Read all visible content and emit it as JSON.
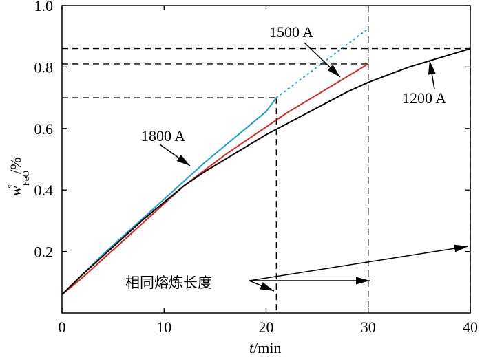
{
  "chart_data": {
    "type": "line",
    "xlabel_var": "t",
    "xlabel_unit": "/min",
    "ylabel_var": "w",
    "ylabel_sup": "s",
    "ylabel_sub": "FeO",
    "ylabel_unit": "/%",
    "xlim": [
      0,
      40
    ],
    "ylim": [
      0,
      1.0
    ],
    "xticks": [
      0,
      10,
      20,
      30,
      40
    ],
    "yticks": [
      0.2,
      0.4,
      0.6,
      0.8,
      1.0
    ],
    "xtick_labels": [
      "0",
      "10",
      "20",
      "30",
      "40"
    ],
    "ytick_labels": [
      "0.2",
      "0.4",
      "0.6",
      "0.8",
      "1.0"
    ],
    "grid": false,
    "series": [
      {
        "name": "1800 A",
        "color": "#1a9fd6",
        "x": [
          0,
          2,
          4,
          6,
          8,
          10,
          12,
          14,
          16,
          18,
          20,
          21
        ],
        "y": [
          0.06,
          0.125,
          0.19,
          0.25,
          0.31,
          0.37,
          0.43,
          0.49,
          0.545,
          0.6,
          0.655,
          0.7
        ],
        "extension": {
          "style": "dotted",
          "x": [
            21,
            24,
            27,
            30
          ],
          "y": [
            0.7,
            0.775,
            0.85,
            0.925
          ]
        }
      },
      {
        "name": "1500 A",
        "color": "#e2231a",
        "x": [
          0,
          2,
          4,
          6,
          8,
          10,
          12,
          14,
          16,
          18,
          20,
          22,
          24,
          26,
          28,
          30
        ],
        "y": [
          0.06,
          0.115,
          0.175,
          0.235,
          0.295,
          0.355,
          0.415,
          0.465,
          0.515,
          0.56,
          0.605,
          0.65,
          0.69,
          0.73,
          0.77,
          0.81
        ]
      },
      {
        "name": "1200 A",
        "color": "#000000",
        "x": [
          0,
          2,
          4,
          6,
          8,
          10,
          12,
          14,
          16,
          18,
          20,
          22,
          24,
          26,
          28,
          30,
          32,
          34,
          36,
          38,
          40
        ],
        "y": [
          0.06,
          0.125,
          0.185,
          0.245,
          0.305,
          0.36,
          0.415,
          0.46,
          0.5,
          0.54,
          0.58,
          0.615,
          0.65,
          0.685,
          0.72,
          0.75,
          0.775,
          0.8,
          0.82,
          0.84,
          0.86
        ]
      }
    ],
    "guides": [
      {
        "x": 21,
        "y": 0.7
      },
      {
        "x": 30,
        "y": 0.81
      },
      {
        "x": 40,
        "y": 0.86
      }
    ],
    "annotations": {
      "label_1800": "1800 A",
      "label_1500": "1500 A",
      "label_1200": "1200 A",
      "same_length": "相同熔炼长度"
    }
  }
}
